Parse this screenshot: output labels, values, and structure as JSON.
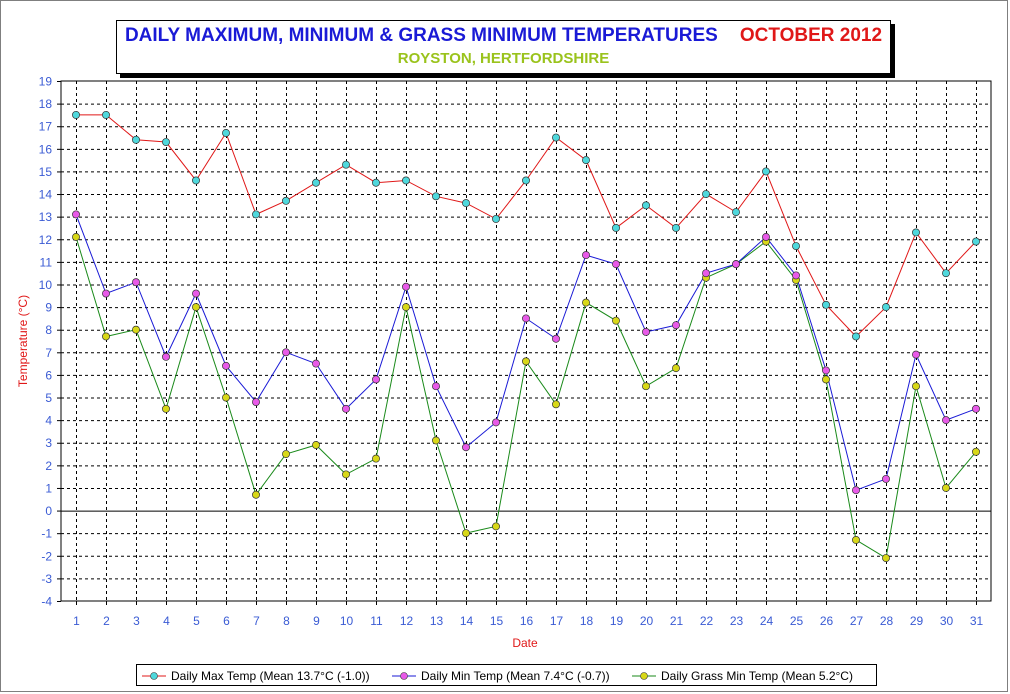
{
  "title": "DAILY MAXIMUM, MINIMUM & GRASS MINIMUM TEMPERATURES",
  "title_month": "OCTOBER 2012",
  "subtitle": "ROYSTON, HERTFORDSHIRE",
  "colors": {
    "title": "#1a1ad6",
    "month": "#e01818",
    "subtitle": "#9ac31c",
    "axis_labels": "#e01818",
    "tick_labels": "#3a5bd4",
    "max_line": "#e01818",
    "max_marker": "#4fd8dc",
    "min_line": "#1a1ad6",
    "min_marker": "#e85ae8",
    "grass_line": "#1a8a1a",
    "grass_marker": "#d8d818"
  },
  "chart_data": {
    "type": "line",
    "xlabel": "Date",
    "ylabel": "Temperature (°C)",
    "ylim": [
      -4,
      19
    ],
    "xlim": [
      1,
      31
    ],
    "grid": true,
    "legend_placement": "bottom",
    "x": [
      1,
      2,
      3,
      4,
      5,
      6,
      7,
      8,
      9,
      10,
      11,
      12,
      13,
      14,
      15,
      16,
      17,
      18,
      19,
      20,
      21,
      22,
      23,
      24,
      25,
      26,
      27,
      28,
      29,
      30,
      31
    ],
    "series": [
      {
        "name": "Daily Max Temp (Mean 13.7°C (-1.0))",
        "color_key": "max",
        "values": [
          17.5,
          17.5,
          16.4,
          16.3,
          14.6,
          16.7,
          13.1,
          13.7,
          14.5,
          15.3,
          14.5,
          14.6,
          13.9,
          13.6,
          12.9,
          14.6,
          16.5,
          15.5,
          12.5,
          13.5,
          12.5,
          14.0,
          13.2,
          15.0,
          11.7,
          9.1,
          7.7,
          9.0,
          12.3,
          10.5,
          11.9
        ]
      },
      {
        "name": "Daily Min Temp (Mean 7.4°C (-0.7))",
        "color_key": "min",
        "values": [
          13.1,
          9.6,
          10.1,
          6.8,
          9.6,
          6.4,
          4.8,
          7.0,
          6.5,
          4.5,
          5.8,
          9.9,
          5.5,
          2.8,
          3.9,
          8.5,
          7.6,
          11.3,
          10.9,
          7.9,
          8.2,
          10.5,
          10.9,
          12.1,
          10.4,
          6.2,
          0.9,
          1.4,
          6.9,
          4.0,
          4.5
        ]
      },
      {
        "name": "Daily Grass Min Temp (Mean 5.2°C)",
        "color_key": "grass",
        "values": [
          12.1,
          7.7,
          8.0,
          4.5,
          9.0,
          5.0,
          0.7,
          2.5,
          2.9,
          1.6,
          2.3,
          9.0,
          3.1,
          -1.0,
          -0.7,
          6.6,
          4.7,
          9.2,
          8.4,
          5.5,
          6.3,
          10.3,
          10.9,
          11.9,
          10.2,
          5.8,
          -1.3,
          -2.1,
          5.5,
          1.0,
          2.6
        ]
      }
    ]
  }
}
